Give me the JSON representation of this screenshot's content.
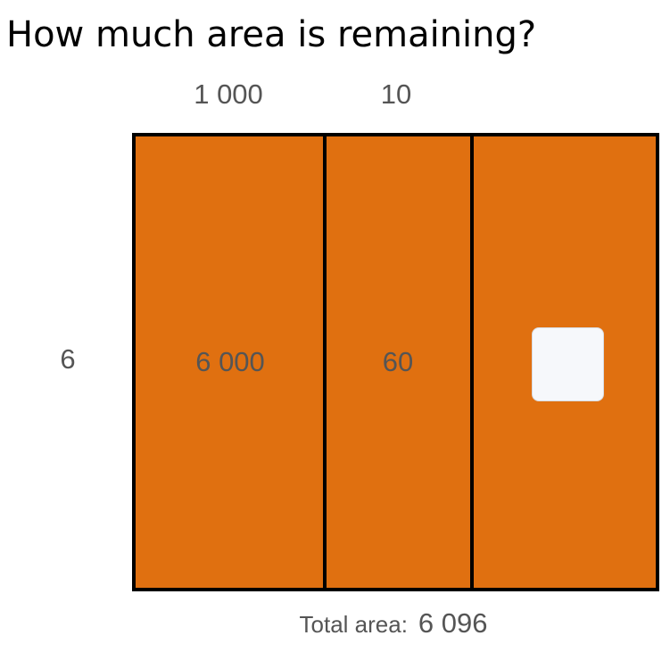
{
  "question": "How much area is remaining?",
  "column_labels": [
    "1 000",
    "10"
  ],
  "row_label": "6",
  "cells": [
    "6 000",
    "60"
  ],
  "answer_placeholder": "",
  "total": {
    "label": "Total area:",
    "value": "6 096"
  },
  "colors": {
    "fill": "#e07010",
    "border": "#000000",
    "text": "#555555",
    "answer_box": "#f6f8fb"
  }
}
